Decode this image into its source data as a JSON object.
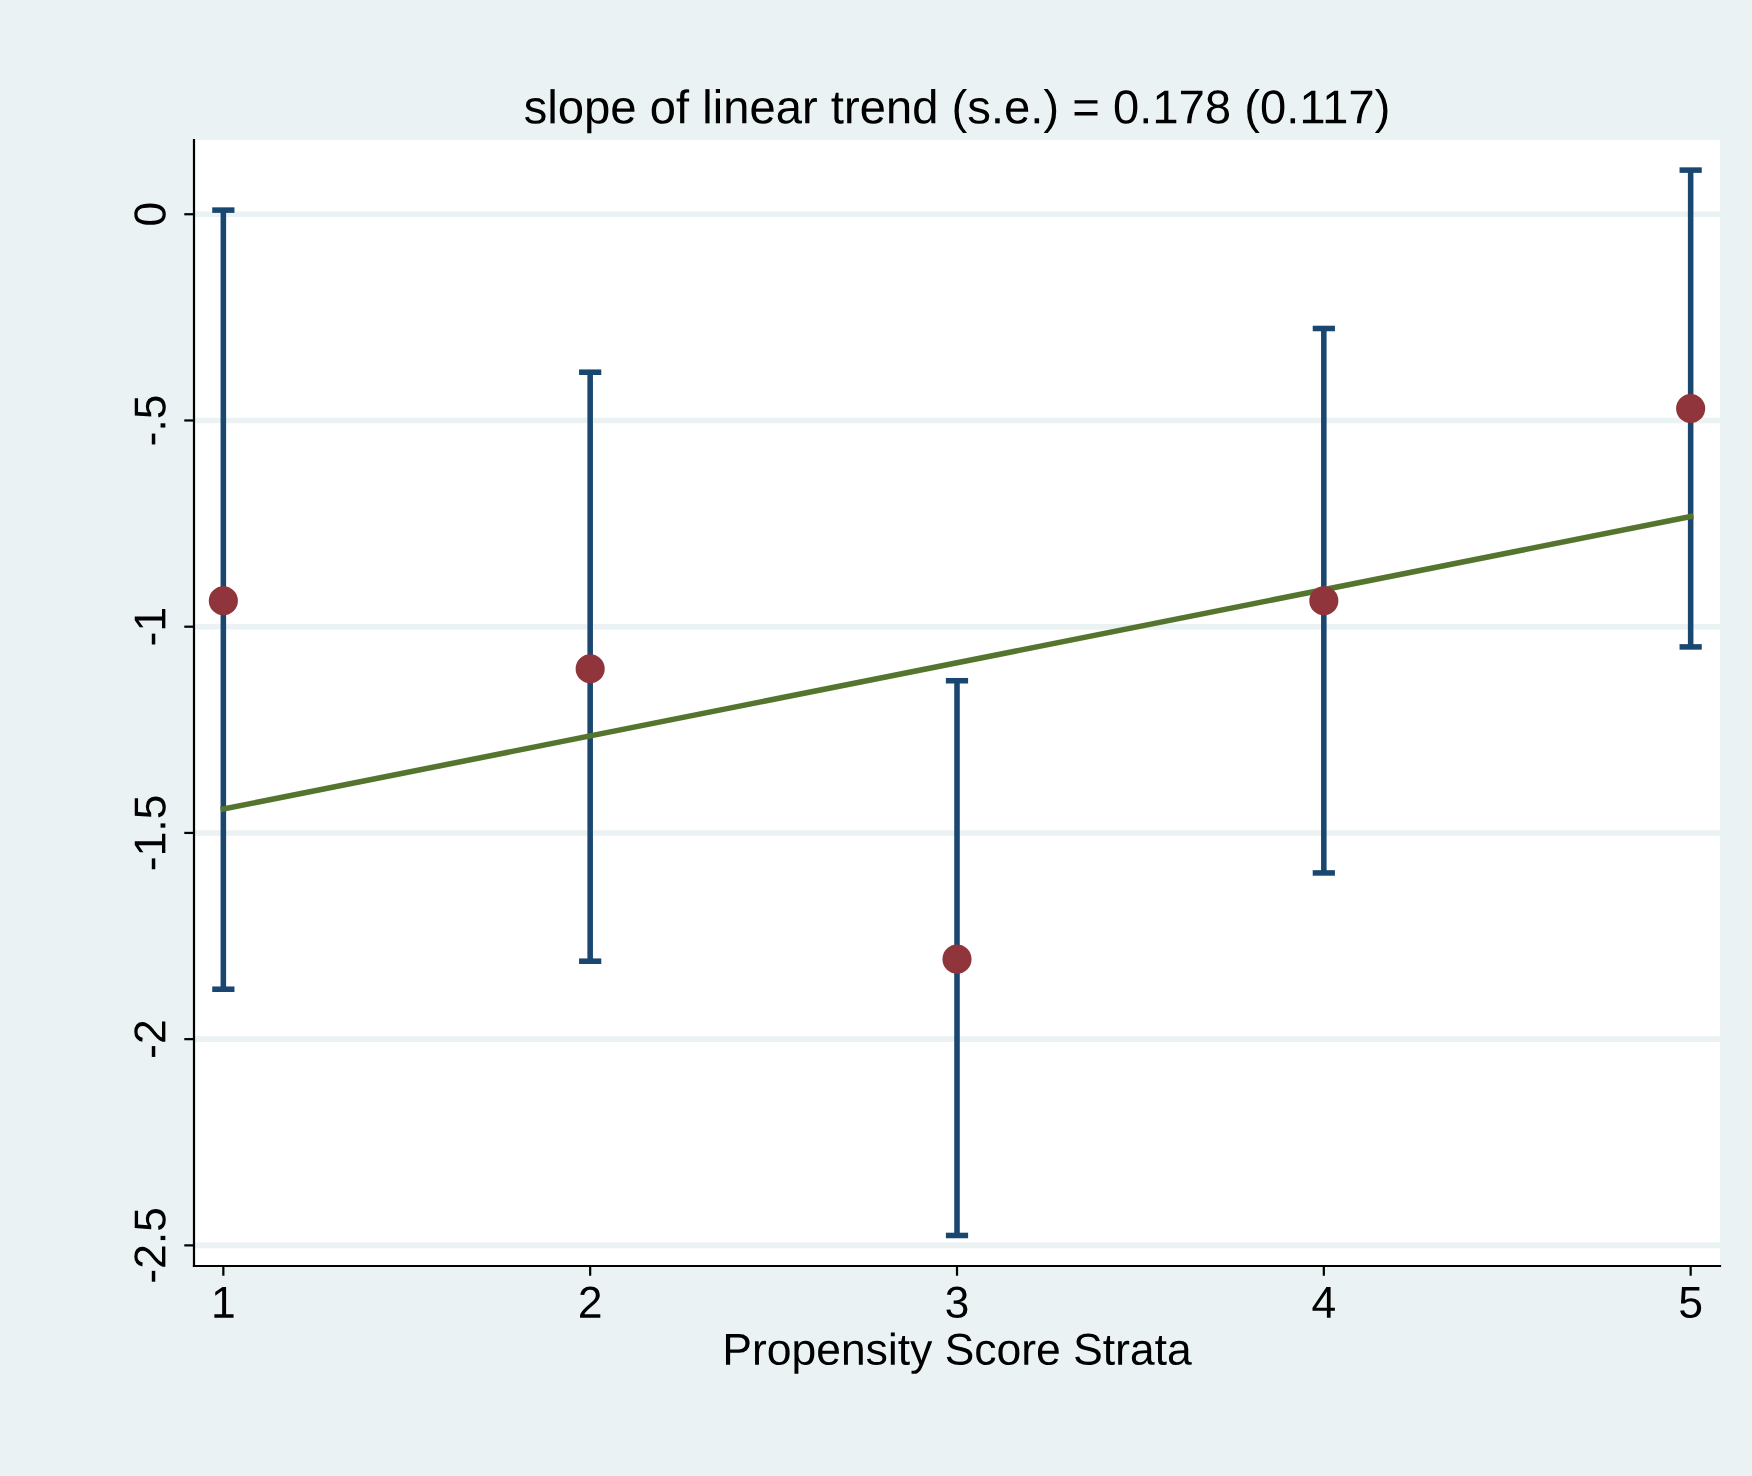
{
  "chart_data": {
    "type": "scatter",
    "title": "slope of linear trend (s.e.) = 0.178 (0.117)",
    "xlabel": "Propensity Score Strata",
    "xlim": [
      0.92,
      5.08
    ],
    "xticks": [
      1,
      2,
      3,
      4,
      5
    ],
    "ylim": [
      -2.55,
      0.18
    ],
    "yticks": [
      {
        "value": 0,
        "label": "0"
      },
      {
        "value": -0.5,
        "label": "-.5"
      },
      {
        "value": -1,
        "label": "-1"
      },
      {
        "value": -1.5,
        "label": "-1.5"
      },
      {
        "value": -2,
        "label": "-2"
      },
      {
        "value": -2.5,
        "label": "-2.5"
      }
    ],
    "grid": "y",
    "marker": "circle",
    "legend": false,
    "series": [
      {
        "color": "#90353b",
        "x": [
          1,
          2,
          3,
          4,
          5
        ],
        "values": [
          -0.937,
          -1.102,
          -1.806,
          -0.937,
          -0.471
        ],
        "errors": [
          [
            -1.879,
            0.01
          ],
          [
            -1.811,
            -0.383
          ],
          [
            -2.476,
            -1.131
          ],
          [
            -1.597,
            -0.277
          ],
          [
            -1.049,
            0.107
          ]
        ]
      },
      {
        "type": "line",
        "color": "#55752f",
        "x": [
          1,
          5
        ],
        "values": [
          -1.442,
          -0.733
        ],
        "marker": "none",
        "line_style": "solid"
      }
    ]
  }
}
